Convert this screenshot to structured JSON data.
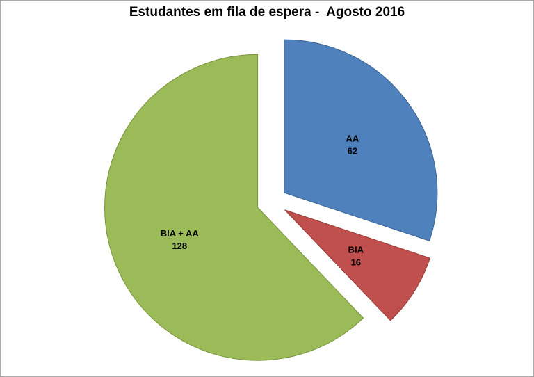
{
  "title": "Estudantes em fila de espera -  Agosto 2016",
  "chart_data": {
    "type": "pie",
    "title": "Estudantes em fila de espera -  Agosto 2016",
    "categories": [
      "AA",
      "BIA",
      "BIA + AA"
    ],
    "values": [
      62,
      16,
      128
    ],
    "colors": [
      "#4F81BD",
      "#C0504D",
      "#9BBB59"
    ],
    "border_colors": [
      "#3A6292",
      "#953B38",
      "#77933C"
    ],
    "slice_labels": [
      {
        "name": "AA",
        "value": "62"
      },
      {
        "name": "BIA",
        "value": "16"
      },
      {
        "name": "BIA + AA",
        "value": "128"
      }
    ],
    "start_angle_deg": -90,
    "direction": "clockwise",
    "exploded": true,
    "legend": "none",
    "label_position": "inside"
  }
}
